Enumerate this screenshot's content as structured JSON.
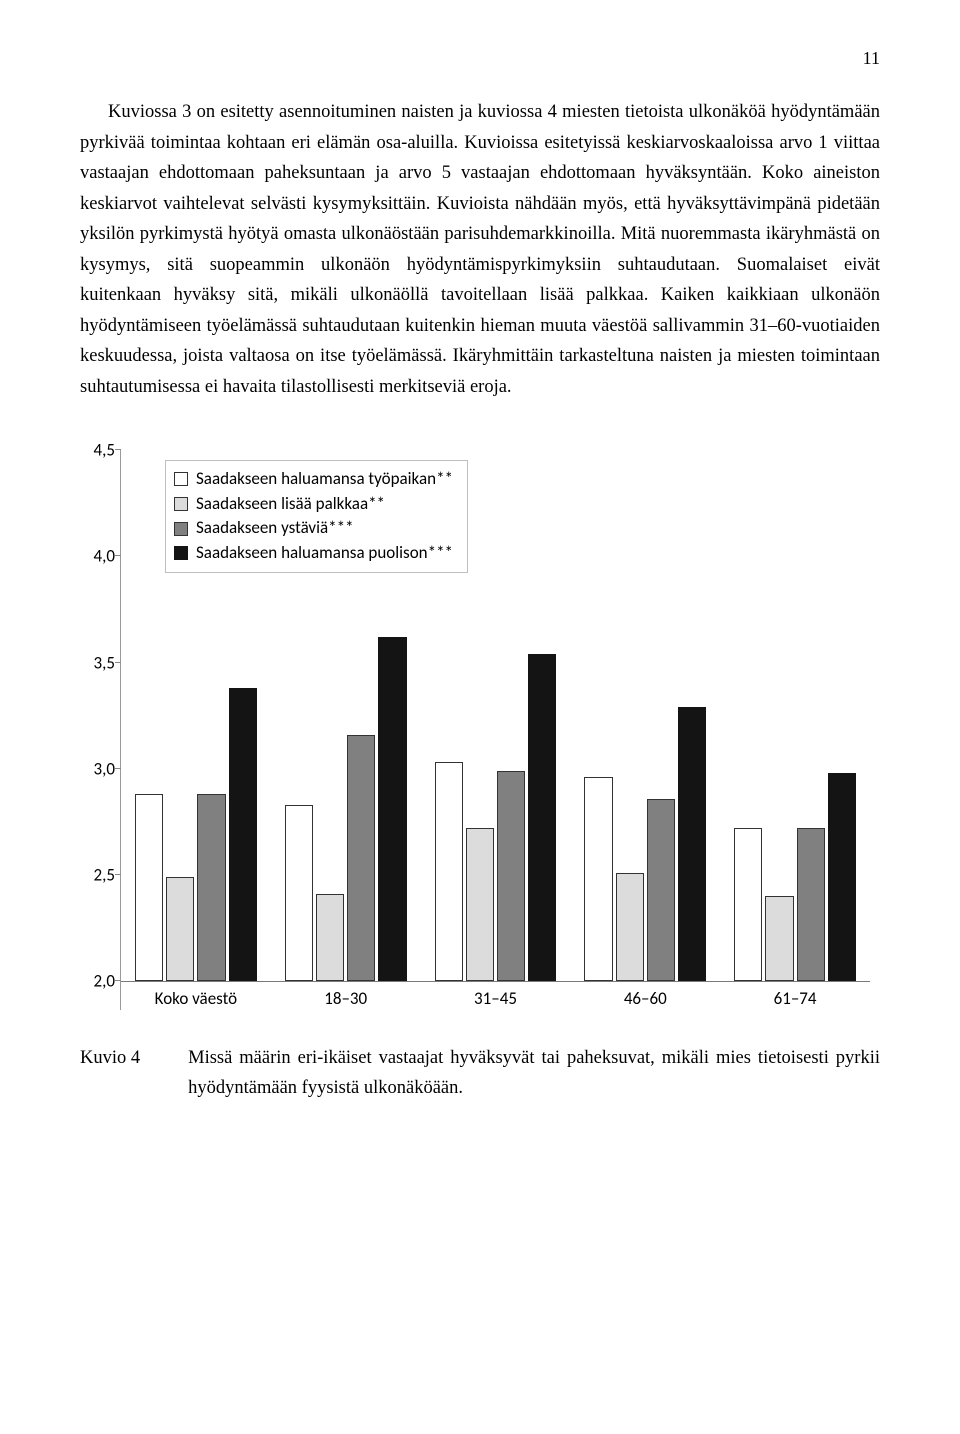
{
  "page_number": "11",
  "body_text": "Kuviossa 3 on esitetty asennoituminen naisten ja kuviossa 4 miesten tietoista ulkonäköä hyödyntämään pyrkivää toimintaa kohtaan eri elämän osa-aluilla. Kuvioissa esitetyissä keskiarvoskaaloissa arvo 1 viittaa vastaajan ehdottomaan paheksuntaan ja arvo 5 vastaajan ehdottomaan hyväksyntään. Koko aineiston keskiarvot vaihtelevat selvästi kysymyksittäin. Kuvioista nähdään myös, että hyväksyttävimpänä pidetään yksilön pyrkimystä hyötyä omasta ulkonäöstään parisuhdemarkkinoilla. Mitä nuoremmasta ikäryhmästä on kysymys, sitä suopeammin ulkonäön hyödyntämispyrkimyksiin suhtaudutaan. Suomalaiset eivät kuitenkaan hyväksy sitä, mikäli ulkonäöllä tavoitellaan lisää palkkaa. Kaiken kaikkiaan ulkonäön hyödyntämiseen työelämässä suhtaudutaan kuitenkin hieman muuta väestöä sallivammin 31–60-vuotiaiden keskuudessa, joista valtaosa on itse työelämässä. Ikäryhmittäin tarkasteltuna naisten ja miesten toimintaan suhtautumisessa ei havaita tilastollisesti merkitseviä eroja.",
  "chart": {
    "type": "bar",
    "ylim": [
      2.0,
      4.5
    ],
    "yticks": [
      2.0,
      2.5,
      3.0,
      3.5,
      4.0,
      4.5
    ],
    "ytick_labels": [
      "2,0",
      "2,5",
      "3,0",
      "3,5",
      "4,0",
      "4,5"
    ],
    "background_color": "#ffffff",
    "axis_color": "#7a7a7a",
    "label_font": "Calibri",
    "label_fontsize": 17,
    "series": [
      {
        "label": "Saadakseen haluamansa työpaikan**",
        "fill": "#ffffff",
        "border": "#333333"
      },
      {
        "label": "Saadakseen lisää palkkaa**",
        "fill": "#dcdcdc",
        "border": "#333333"
      },
      {
        "label": "Saadakseen ystäviä***",
        "fill": "#808080",
        "border": "#333333"
      },
      {
        "label": "Saadakseen haluamansa puolison***",
        "fill": "#141414",
        "border": "#141414"
      }
    ],
    "categories": [
      "Koko väestö",
      "18–30",
      "31–45",
      "46–60",
      "61–74"
    ],
    "data": [
      [
        2.88,
        2.49,
        2.88,
        3.38
      ],
      [
        2.83,
        2.41,
        3.16,
        3.62
      ],
      [
        3.03,
        2.72,
        2.99,
        3.54
      ],
      [
        2.96,
        2.51,
        2.86,
        3.29
      ],
      [
        2.72,
        2.4,
        2.72,
        2.98
      ]
    ]
  },
  "caption": {
    "label": "Kuvio 4",
    "text": "Missä määrin eri-ikäiset vastaajat hyväksyvät tai paheksuvat, mikäli mies tietoisesti pyrkii hyödyntämään fyysistä ulkonäköään."
  }
}
